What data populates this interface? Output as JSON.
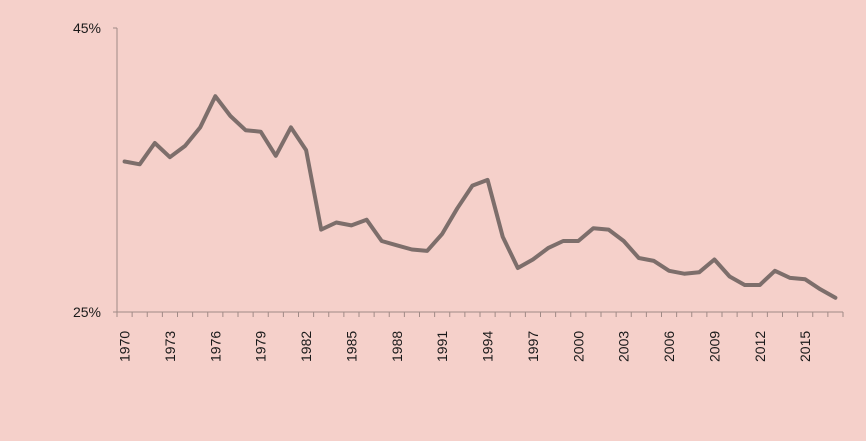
{
  "chart_data": {
    "type": "line",
    "title": "",
    "xlabel": "",
    "ylabel": "",
    "ylim": [
      25,
      45
    ],
    "y_tick_labels": [
      "45%",
      "25%"
    ],
    "x_tick_labels": [
      "1970",
      "1973",
      "1976",
      "1979",
      "1982",
      "1985",
      "1988",
      "1991",
      "1994",
      "1997",
      "2000",
      "2003",
      "2006",
      "2009",
      "2012",
      "2015"
    ],
    "x": [
      1970,
      1971,
      1972,
      1973,
      1974,
      1975,
      1976,
      1977,
      1978,
      1979,
      1980,
      1981,
      1982,
      1983,
      1984,
      1985,
      1986,
      1987,
      1988,
      1989,
      1990,
      1991,
      1992,
      1993,
      1994,
      1995,
      1996,
      1997,
      1998,
      1999,
      2000,
      2001,
      2002,
      2003,
      2004,
      2005,
      2006,
      2007,
      2008,
      2009,
      2010,
      2011,
      2012,
      2013,
      2014,
      2015,
      2016,
      2017
    ],
    "series": [
      {
        "name": "",
        "color": "#7d6e6b",
        "values": [
          35.6,
          35.4,
          36.9,
          35.9,
          36.7,
          38.0,
          40.2,
          38.8,
          37.8,
          37.7,
          36.0,
          38.0,
          36.4,
          30.8,
          31.3,
          31.1,
          31.5,
          30.0,
          29.7,
          29.4,
          29.3,
          30.5,
          32.3,
          33.9,
          34.3,
          30.3,
          28.1,
          28.7,
          29.5,
          30.0,
          30.0,
          30.9,
          30.8,
          30.0,
          28.8,
          28.6,
          27.9,
          27.7,
          27.8,
          28.7,
          27.5,
          26.9,
          26.9,
          27.9,
          27.4,
          27.3,
          26.6,
          26.0
        ]
      }
    ],
    "grid": false,
    "legend": "none"
  }
}
